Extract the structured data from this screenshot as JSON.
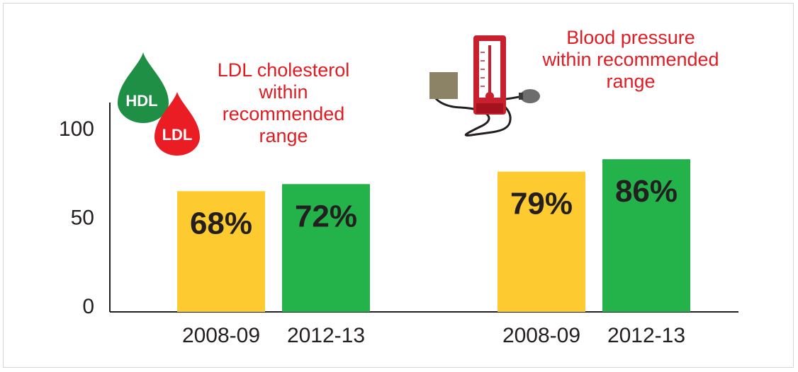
{
  "chart_data": {
    "type": "bar",
    "ylim": [
      0,
      100
    ],
    "yticks": [
      0,
      50,
      100
    ],
    "grid": false,
    "series_colors": {
      "2008-09": "#fdca2f",
      "2012-13": "#24b24b"
    },
    "groups": [
      {
        "title_lines": [
          "LDL cholesterol",
          "within",
          "recommended",
          "range"
        ],
        "icon": "cholesterol-drops-icon",
        "icon_text": [
          "HDL",
          "LDL"
        ],
        "bars": [
          {
            "category": "2008-09",
            "value": 68,
            "label": "68%"
          },
          {
            "category": "2012-13",
            "value": 72,
            "label": "72%"
          }
        ]
      },
      {
        "title_lines": [
          "Blood pressure",
          "within recommended",
          "range"
        ],
        "icon": "blood-pressure-gauge-icon",
        "bars": [
          {
            "category": "2008-09",
            "value": 79,
            "label": "79%"
          },
          {
            "category": "2012-13",
            "value": 86,
            "label": "86%"
          }
        ]
      }
    ]
  }
}
